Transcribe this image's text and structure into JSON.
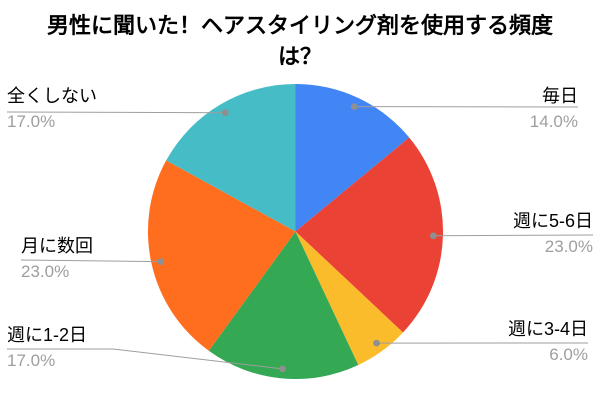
{
  "chart_data": {
    "type": "pie",
    "title": "男性に聞いた！ヘアスタイリング剤を使用する頻度は？",
    "direction": "clockwise",
    "start_angle": "top",
    "labels_position": "outside-with-leader-lines",
    "background": "#ffffff",
    "label_color": "#000000",
    "percent_color": "#9e9e9e",
    "leader_line_color": "#9e9e9e",
    "leader_dot_color": "#8f8f8f",
    "slices": [
      {
        "label": "毎日",
        "value": 14.0,
        "pct_label": "14.0%",
        "color": "#4285F4"
      },
      {
        "label": "週に5-6日",
        "value": 23.0,
        "pct_label": "23.0%",
        "color": "#EA4335"
      },
      {
        "label": "週に3-4日",
        "value": 6.0,
        "pct_label": "6.0%",
        "color": "#FBBC2C"
      },
      {
        "label": "週に1-2日",
        "value": 17.0,
        "pct_label": "17.0%",
        "color": "#34A853"
      },
      {
        "label": "月に数回",
        "value": 23.0,
        "pct_label": "23.0%",
        "color": "#FF6D1F"
      },
      {
        "label": "全くしない",
        "value": 17.0,
        "pct_label": "17.0%",
        "color": "#46BDC6"
      }
    ]
  }
}
